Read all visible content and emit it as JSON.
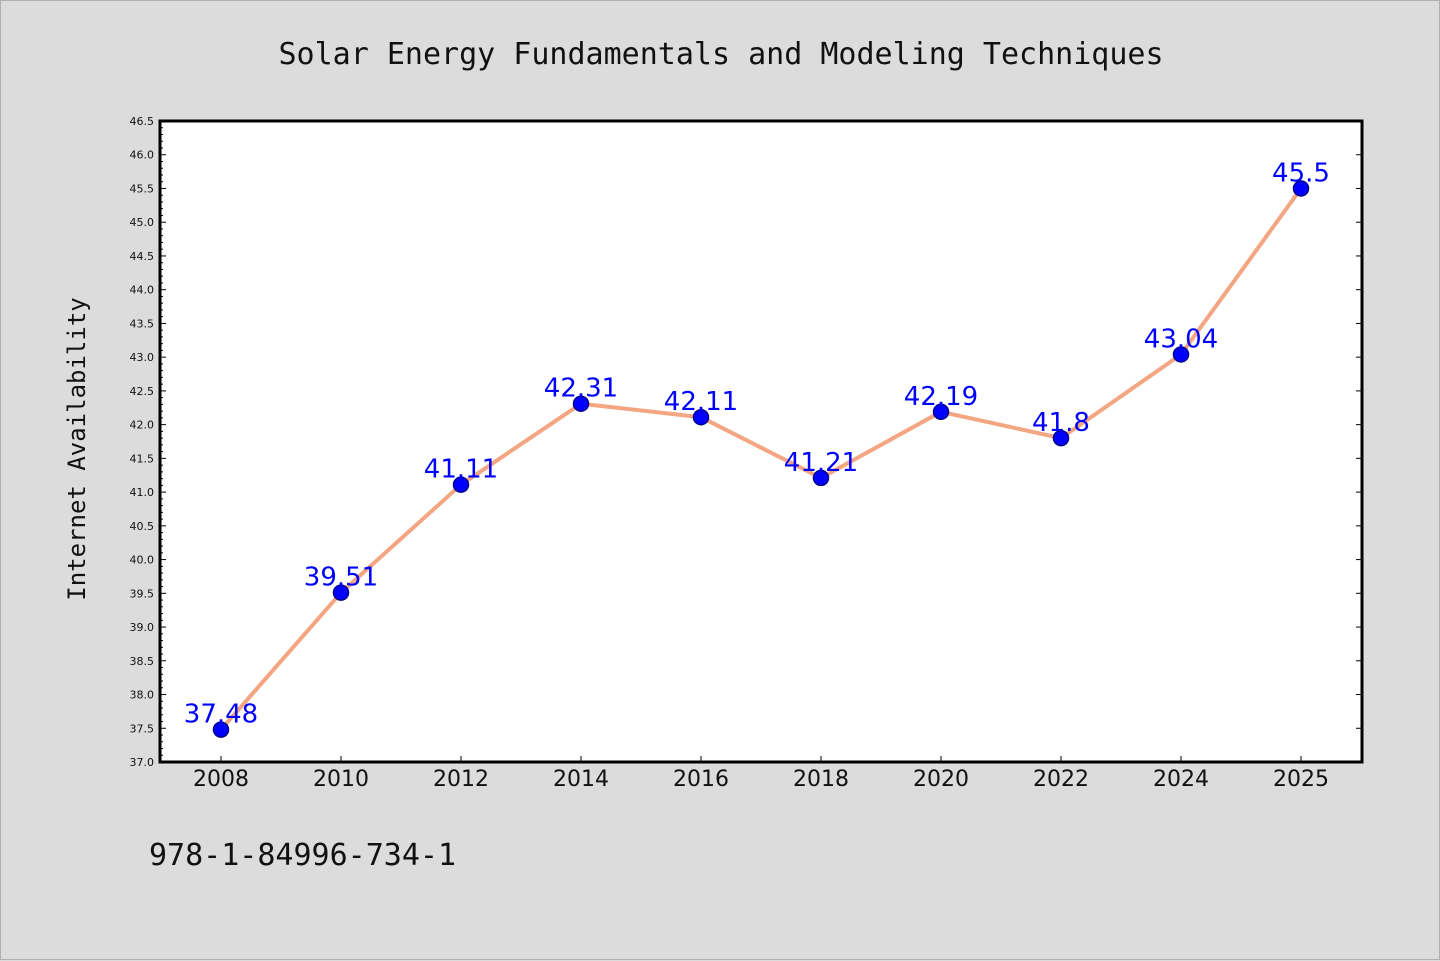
{
  "chart_data": {
    "type": "line",
    "title": "Solar Energy Fundamentals and Modeling Techniques",
    "xlabel": "",
    "ylabel": "Internet Availability",
    "categories": [
      "2008",
      "2010",
      "2012",
      "2014",
      "2016",
      "2018",
      "2020",
      "2022",
      "2024",
      "2025"
    ],
    "series": [
      {
        "values": [
          37.48,
          39.51,
          41.11,
          42.31,
          42.11,
          41.21,
          42.19,
          41.8,
          43.04,
          45.5
        ],
        "data_labels": [
          "37.48",
          "39.51",
          "41.11",
          "42.31",
          "42.11",
          "41.21",
          "42.19",
          "41.8",
          "43.04",
          "45.5"
        ]
      }
    ],
    "ylim": [
      37.0,
      46.5
    ],
    "yticks": [
      "37.0",
      "37.5",
      "38.0",
      "38.5",
      "39.0",
      "39.5",
      "40.0",
      "40.5",
      "41.0",
      "41.5",
      "42.0",
      "42.5",
      "43.0",
      "43.5",
      "44.0",
      "44.5",
      "45.0",
      "45.5",
      "46.0",
      "46.5"
    ],
    "grid": false,
    "colors": {
      "figure_background": "#dcdcdc",
      "plot_background": "#ffffff",
      "line": "#f4a582",
      "marker_fill": "#0000ff",
      "marker_edge": "#00008b",
      "data_label": "#0000ff"
    }
  },
  "footnote": "978-1-84996-734-1"
}
